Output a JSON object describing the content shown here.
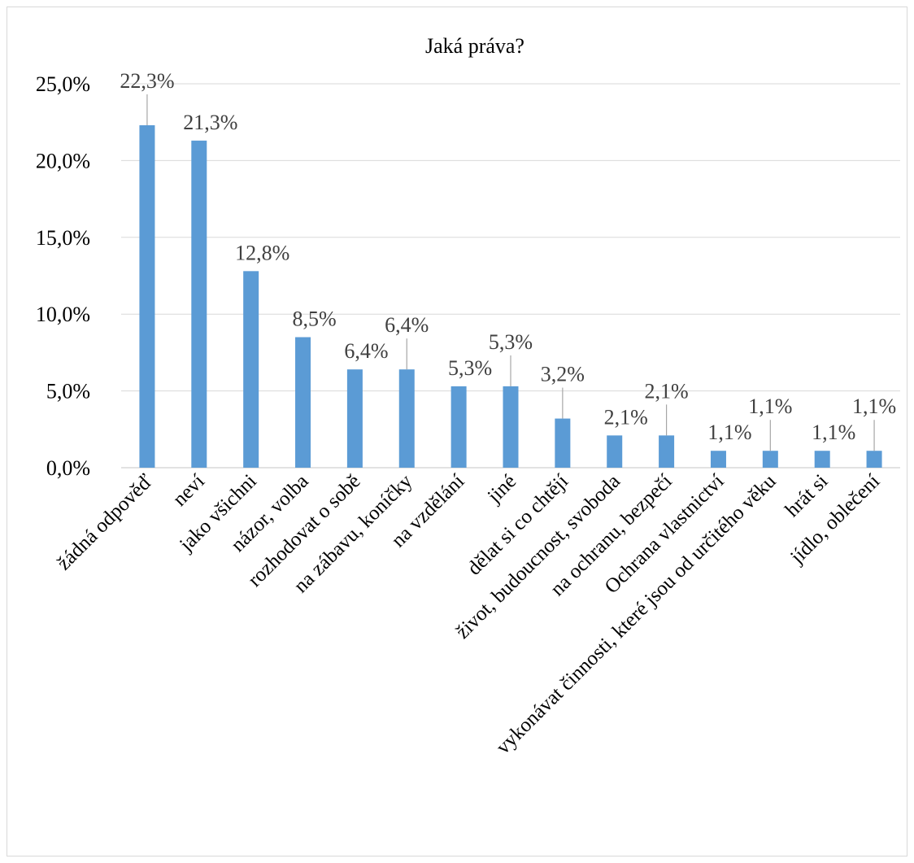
{
  "chart_data": {
    "type": "bar",
    "title": "Jaká práva?",
    "categories": [
      "žádná odpověď",
      "neví",
      "jako všichni",
      "názor, volba",
      "rozhodovat o sobě",
      "na zábavu, koníčky",
      "na vzdělání",
      "jiné",
      "dělat si co chtějí",
      "život, budoucnost, svoboda",
      "na ochranu, bezpečí",
      "Ochrana vlastnictví",
      "vykonávat činnosti, které jsou od určitého věku",
      "hrát si",
      "jídlo, oblečení"
    ],
    "values": [
      22.3,
      21.3,
      12.8,
      8.5,
      6.4,
      6.4,
      5.3,
      5.3,
      3.2,
      2.1,
      2.1,
      1.1,
      1.1,
      1.1,
      1.1
    ],
    "data_labels": [
      "22,3%",
      "21,3%",
      "12,8%",
      "8,5%",
      "6,4%",
      "6,4%",
      "5,3%",
      "5,3%",
      "3,2%",
      "2,1%",
      "2,1%",
      "1,1%",
      "1,1%",
      "1,1%",
      "1,1%"
    ],
    "label_leader": [
      true,
      false,
      false,
      false,
      false,
      true,
      false,
      true,
      true,
      false,
      true,
      false,
      true,
      false,
      true
    ],
    "y_ticks": [
      0,
      5,
      10,
      15,
      20,
      25
    ],
    "y_tick_labels": [
      "0,0%",
      "5,0%",
      "10,0%",
      "15,0%",
      "20,0%",
      "25,0%"
    ],
    "ylim": [
      0,
      25
    ],
    "grid": true,
    "bar_color": "#5b9bd5",
    "xlabel": "",
    "ylabel": ""
  }
}
